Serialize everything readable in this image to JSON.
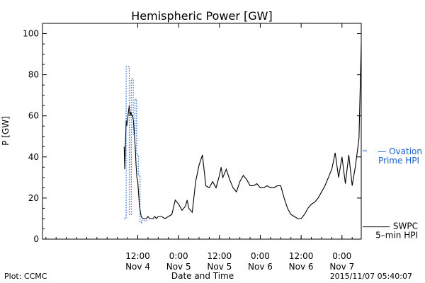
{
  "chart_data": {
    "type": "line",
    "title": "Hemispheric Power [GW]",
    "ylabel": "P [GW]",
    "xlabel": "Date and Time",
    "ylim": [
      0,
      105
    ],
    "yticks": [
      0,
      20,
      40,
      60,
      80,
      100
    ],
    "xlim": [
      "2015-11-03T08:00",
      "2015-11-07T05:40"
    ],
    "xticks": [
      {
        "t": "2015-11-04T12:00",
        "line1": "12:00",
        "line2": "Nov 4"
      },
      {
        "t": "2015-11-05T00:00",
        "line1": "0:00",
        "line2": "Nov 5"
      },
      {
        "t": "2015-11-05T12:00",
        "line1": "12:00",
        "line2": "Nov 5"
      },
      {
        "t": "2015-11-06T00:00",
        "line1": "0:00",
        "line2": "Nov 6"
      },
      {
        "t": "2015-11-06T12:00",
        "line1": "12:00",
        "line2": "Nov 6"
      },
      {
        "t": "2015-11-07T00:00",
        "line1": "0:00",
        "line2": "Nov 7"
      }
    ],
    "series": [
      {
        "name": "SWPC 5-min HPI",
        "style": "solid",
        "color": "#000000",
        "x": [
          "2015-11-04T08:00",
          "2015-11-04T08:10",
          "2015-11-04T08:20",
          "2015-11-04T08:35",
          "2015-11-04T08:45",
          "2015-11-04T09:00",
          "2015-11-04T09:15",
          "2015-11-04T09:30",
          "2015-11-04T09:45",
          "2015-11-04T10:00",
          "2015-11-04T10:15",
          "2015-11-04T10:30",
          "2015-11-04T10:45",
          "2015-11-04T11:00",
          "2015-11-04T11:15",
          "2015-11-04T11:30",
          "2015-11-04T11:45",
          "2015-11-04T12:00",
          "2015-11-04T12:15",
          "2015-11-04T12:30",
          "2015-11-04T13:00",
          "2015-11-04T13:30",
          "2015-11-04T14:00",
          "2015-11-04T14:30",
          "2015-11-04T15:00",
          "2015-11-04T15:30",
          "2015-11-04T16:00",
          "2015-11-04T16:30",
          "2015-11-04T17:00",
          "2015-11-04T17:30",
          "2015-11-04T18:00",
          "2015-11-04T19:00",
          "2015-11-04T20:00",
          "2015-11-04T21:00",
          "2015-11-04T22:00",
          "2015-11-04T23:00",
          "2015-11-05T00:00",
          "2015-11-05T01:00",
          "2015-11-05T02:00",
          "2015-11-05T02:30",
          "2015-11-05T03:00",
          "2015-11-05T04:00",
          "2015-11-05T05:00",
          "2015-11-05T06:00",
          "2015-11-05T07:00",
          "2015-11-05T08:00",
          "2015-11-05T09:00",
          "2015-11-05T10:00",
          "2015-11-05T11:00",
          "2015-11-05T12:00",
          "2015-11-05T12:30",
          "2015-11-05T13:00",
          "2015-11-05T14:00",
          "2015-11-05T15:00",
          "2015-11-05T16:00",
          "2015-11-05T17:00",
          "2015-11-05T18:00",
          "2015-11-05T19:00",
          "2015-11-05T20:00",
          "2015-11-05T21:00",
          "2015-11-05T22:00",
          "2015-11-05T23:00",
          "2015-11-06T00:00",
          "2015-11-06T01:00",
          "2015-11-06T02:00",
          "2015-11-06T03:00",
          "2015-11-06T04:00",
          "2015-11-06T05:00",
          "2015-11-06T06:00",
          "2015-11-06T07:00",
          "2015-11-06T08:00",
          "2015-11-06T09:00",
          "2015-11-06T10:00",
          "2015-11-06T11:00",
          "2015-11-06T12:00",
          "2015-11-06T13:00",
          "2015-11-06T14:00",
          "2015-11-06T15:00",
          "2015-11-06T16:00",
          "2015-11-06T17:00",
          "2015-11-06T18:00",
          "2015-11-06T19:00",
          "2015-11-06T20:00",
          "2015-11-06T21:00",
          "2015-11-06T22:00",
          "2015-11-06T23:00",
          "2015-11-07T00:00",
          "2015-11-07T01:00",
          "2015-11-07T02:00",
          "2015-11-07T03:00",
          "2015-11-07T04:00",
          "2015-11-07T05:00",
          "2015-11-07T05:40"
        ],
        "y": [
          45,
          34,
          44,
          58,
          55,
          58,
          62,
          65,
          60,
          62,
          60,
          60,
          57,
          51,
          45,
          36,
          30,
          28,
          22,
          16,
          11,
          10,
          10,
          10,
          11,
          10,
          10,
          10,
          11,
          10,
          11,
          11,
          10,
          11,
          12,
          19,
          17,
          14,
          16,
          19,
          15,
          13,
          28,
          36,
          41,
          26,
          25,
          28,
          25,
          31,
          35,
          30,
          34,
          29,
          25,
          23,
          28,
          31,
          29,
          26,
          26,
          27,
          25,
          25,
          26,
          25,
          25,
          26,
          26,
          20,
          15,
          12,
          11,
          10,
          10,
          12,
          15,
          17,
          18,
          20,
          23,
          26,
          30,
          34,
          42,
          30,
          40,
          27,
          41,
          26,
          36,
          49,
          95
        ]
      },
      {
        "name": "Ovation Prime HPI",
        "style": "dotted-step",
        "color": "#1a5fc8",
        "x": [
          "2015-11-04T08:00",
          "2015-11-04T08:35",
          "2015-11-04T09:30",
          "2015-11-04T10:05",
          "2015-11-04T10:40",
          "2015-11-04T11:10",
          "2015-11-04T11:40",
          "2015-11-04T12:10",
          "2015-11-04T12:40",
          "2015-11-04T13:10"
        ],
        "y": [
          10,
          84,
          12,
          78,
          51,
          68,
          41,
          31,
          8,
          9
        ]
      }
    ],
    "legend": [
      {
        "lines": [
          "— Ovation",
          "Prime HPI"
        ],
        "color": "#1a5fc8"
      },
      {
        "lines": [
          "SWPC",
          "5–min HPI"
        ],
        "color": "#000000"
      }
    ],
    "grid": false
  },
  "footer": {
    "left": "Plot: CCMC",
    "right": "2015/11/07 05:40:07"
  }
}
